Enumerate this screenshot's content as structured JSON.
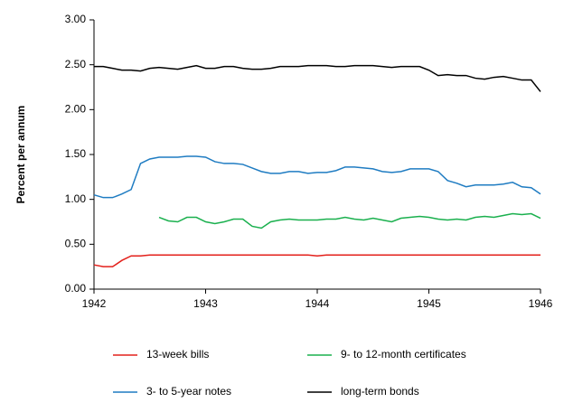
{
  "chart_data": {
    "type": "line",
    "y_label": "Percent per annum",
    "x": [
      1942,
      1942.083,
      1942.167,
      1942.25,
      1942.333,
      1942.417,
      1942.5,
      1942.583,
      1942.667,
      1942.75,
      1942.833,
      1942.917,
      1943,
      1943.083,
      1943.167,
      1943.25,
      1943.333,
      1943.417,
      1943.5,
      1943.583,
      1943.667,
      1943.75,
      1943.833,
      1943.917,
      1944,
      1944.083,
      1944.167,
      1944.25,
      1944.333,
      1944.417,
      1944.5,
      1944.583,
      1944.667,
      1944.75,
      1944.833,
      1944.917,
      1945,
      1945.083,
      1945.167,
      1945.25,
      1945.333,
      1945.417,
      1945.5,
      1945.583,
      1945.667,
      1945.75,
      1945.833,
      1945.917,
      1946
    ],
    "series": [
      {
        "name": "13-week bills",
        "color": "#e3201b",
        "values": [
          0.27,
          0.25,
          0.25,
          0.32,
          0.37,
          0.37,
          0.38,
          0.38,
          0.38,
          0.38,
          0.38,
          0.38,
          0.38,
          0.38,
          0.38,
          0.38,
          0.38,
          0.38,
          0.38,
          0.38,
          0.38,
          0.38,
          0.38,
          0.38,
          0.37,
          0.38,
          0.38,
          0.38,
          0.38,
          0.38,
          0.38,
          0.38,
          0.38,
          0.38,
          0.38,
          0.38,
          0.38,
          0.38,
          0.38,
          0.38,
          0.38,
          0.38,
          0.38,
          0.38,
          0.38,
          0.38,
          0.38,
          0.38,
          0.38
        ]
      },
      {
        "name": "9- to 12-month certificates",
        "color": "#1ab04e",
        "values": [
          null,
          null,
          null,
          null,
          null,
          null,
          null,
          0.8,
          0.76,
          0.75,
          0.8,
          0.8,
          0.75,
          0.73,
          0.75,
          0.78,
          0.78,
          0.7,
          0.68,
          0.75,
          0.77,
          0.78,
          0.77,
          0.77,
          0.77,
          0.78,
          0.78,
          0.8,
          0.78,
          0.77,
          0.79,
          0.77,
          0.75,
          0.79,
          0.8,
          0.81,
          0.8,
          0.78,
          0.77,
          0.78,
          0.77,
          0.8,
          0.81,
          0.8,
          0.82,
          0.84,
          0.83,
          0.84,
          0.79
        ]
      },
      {
        "name": "3- to 5-year notes",
        "color": "#1f7cc2",
        "values": [
          1.05,
          1.02,
          1.02,
          1.06,
          1.11,
          1.4,
          1.45,
          1.47,
          1.47,
          1.47,
          1.48,
          1.48,
          1.47,
          1.42,
          1.4,
          1.4,
          1.39,
          1.35,
          1.31,
          1.29,
          1.29,
          1.31,
          1.31,
          1.29,
          1.3,
          1.3,
          1.32,
          1.36,
          1.36,
          1.35,
          1.34,
          1.31,
          1.3,
          1.31,
          1.34,
          1.34,
          1.34,
          1.31,
          1.21,
          1.18,
          1.14,
          1.16,
          1.16,
          1.16,
          1.17,
          1.19,
          1.14,
          1.13,
          1.06
        ]
      },
      {
        "name": "long-term bonds",
        "color": "#000000",
        "values": [
          2.48,
          2.48,
          2.46,
          2.44,
          2.44,
          2.43,
          2.46,
          2.47,
          2.46,
          2.45,
          2.47,
          2.49,
          2.46,
          2.46,
          2.48,
          2.48,
          2.46,
          2.45,
          2.45,
          2.46,
          2.48,
          2.48,
          2.48,
          2.49,
          2.49,
          2.49,
          2.48,
          2.48,
          2.49,
          2.49,
          2.49,
          2.48,
          2.47,
          2.48,
          2.48,
          2.48,
          2.44,
          2.38,
          2.39,
          2.38,
          2.38,
          2.35,
          2.34,
          2.36,
          2.37,
          2.35,
          2.33,
          2.33,
          2.2
        ]
      }
    ],
    "xlim": [
      1942,
      1946
    ],
    "xticks": [
      1942,
      1943,
      1944,
      1945,
      1946
    ],
    "ylim": [
      0,
      3
    ],
    "yticks": [
      {
        "value": 0,
        "label": "0.00"
      },
      {
        "value": 0.5,
        "label": "0.50"
      },
      {
        "value": 1,
        "label": "1.00"
      },
      {
        "value": 1.5,
        "label": "1.50"
      },
      {
        "value": 2,
        "label": "2.00"
      },
      {
        "value": 2.5,
        "label": "2.50"
      },
      {
        "value": 3,
        "label": "3.00"
      }
    ],
    "grid": false
  }
}
